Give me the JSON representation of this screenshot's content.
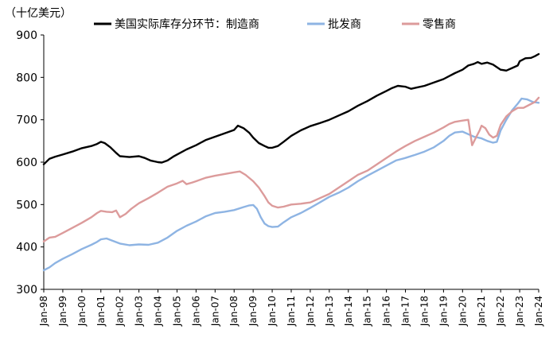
{
  "chart_data": {
    "type": "line",
    "unit_label": "（十亿美元）",
    "ylim": [
      300,
      900
    ],
    "yticks": [
      300,
      400,
      500,
      600,
      700,
      800,
      900
    ],
    "xlim": [
      1998,
      2024
    ],
    "xticks": [
      "Jan-98",
      "Jan-99",
      "Jan-00",
      "Jan-01",
      "Jan-02",
      "Jan-03",
      "Jan-04",
      "Jan-05",
      "Jan-06",
      "Jan-07",
      "Jan-08",
      "Jan-09",
      "Jan-10",
      "Jan-11",
      "Jan-12",
      "Jan-13",
      "Jan-14",
      "Jan-15",
      "Jan-16",
      "Jan-17",
      "Jan-18",
      "Jan-19",
      "Jan-20",
      "Jan-21",
      "Jan-22",
      "Jan-23",
      "Jan-24"
    ],
    "legend_placement": "top",
    "grid": false,
    "series": [
      {
        "name": "美国实际库存分环节：制造商",
        "color": "#000000",
        "points": [
          [
            1998.0,
            595
          ],
          [
            1998.3,
            608
          ],
          [
            1998.6,
            613
          ],
          [
            1999.0,
            618
          ],
          [
            1999.5,
            625
          ],
          [
            2000.0,
            633
          ],
          [
            2000.5,
            638
          ],
          [
            2000.8,
            643
          ],
          [
            2001.0,
            648
          ],
          [
            2001.2,
            645
          ],
          [
            2001.5,
            635
          ],
          [
            2001.8,
            622
          ],
          [
            2002.0,
            614
          ],
          [
            2002.5,
            612
          ],
          [
            2003.0,
            614
          ],
          [
            2003.3,
            610
          ],
          [
            2003.6,
            604
          ],
          [
            2004.0,
            600
          ],
          [
            2004.2,
            599
          ],
          [
            2004.5,
            604
          ],
          [
            2004.8,
            613
          ],
          [
            2005.0,
            618
          ],
          [
            2005.5,
            630
          ],
          [
            2006.0,
            640
          ],
          [
            2006.5,
            652
          ],
          [
            2007.0,
            660
          ],
          [
            2007.5,
            668
          ],
          [
            2008.0,
            676
          ],
          [
            2008.2,
            686
          ],
          [
            2008.5,
            680
          ],
          [
            2008.8,
            669
          ],
          [
            2009.0,
            658
          ],
          [
            2009.3,
            645
          ],
          [
            2009.6,
            638
          ],
          [
            2009.8,
            634
          ],
          [
            2010.0,
            634
          ],
          [
            2010.3,
            638
          ],
          [
            2010.6,
            648
          ],
          [
            2011.0,
            662
          ],
          [
            2011.5,
            675
          ],
          [
            2012.0,
            685
          ],
          [
            2012.5,
            692
          ],
          [
            2013.0,
            700
          ],
          [
            2013.5,
            710
          ],
          [
            2014.0,
            720
          ],
          [
            2014.5,
            733
          ],
          [
            2015.0,
            744
          ],
          [
            2015.5,
            757
          ],
          [
            2016.0,
            768
          ],
          [
            2016.3,
            775
          ],
          [
            2016.6,
            780
          ],
          [
            2017.0,
            778
          ],
          [
            2017.3,
            773
          ],
          [
            2017.6,
            776
          ],
          [
            2018.0,
            780
          ],
          [
            2018.5,
            788
          ],
          [
            2019.0,
            796
          ],
          [
            2019.3,
            803
          ],
          [
            2019.6,
            810
          ],
          [
            2020.0,
            818
          ],
          [
            2020.3,
            828
          ],
          [
            2020.6,
            832
          ],
          [
            2020.8,
            836
          ],
          [
            2021.0,
            832
          ],
          [
            2021.3,
            835
          ],
          [
            2021.6,
            830
          ],
          [
            2021.8,
            824
          ],
          [
            2022.0,
            818
          ],
          [
            2022.3,
            816
          ],
          [
            2022.6,
            822
          ],
          [
            2022.9,
            828
          ],
          [
            2023.0,
            838
          ],
          [
            2023.3,
            845
          ],
          [
            2023.6,
            846
          ],
          [
            2023.8,
            850
          ],
          [
            2024.0,
            855
          ]
        ]
      },
      {
        "name": "批发商",
        "color": "#8EB4E3",
        "points": [
          [
            1998.0,
            345
          ],
          [
            1998.3,
            352
          ],
          [
            1998.6,
            362
          ],
          [
            1999.0,
            372
          ],
          [
            1999.5,
            383
          ],
          [
            2000.0,
            395
          ],
          [
            2000.5,
            405
          ],
          [
            2000.8,
            412
          ],
          [
            2001.0,
            418
          ],
          [
            2001.3,
            420
          ],
          [
            2001.6,
            415
          ],
          [
            2002.0,
            408
          ],
          [
            2002.5,
            404
          ],
          [
            2003.0,
            406
          ],
          [
            2003.5,
            405
          ],
          [
            2004.0,
            410
          ],
          [
            2004.5,
            422
          ],
          [
            2005.0,
            438
          ],
          [
            2005.5,
            450
          ],
          [
            2006.0,
            460
          ],
          [
            2006.5,
            472
          ],
          [
            2007.0,
            480
          ],
          [
            2007.5,
            483
          ],
          [
            2008.0,
            487
          ],
          [
            2008.5,
            494
          ],
          [
            2008.8,
            498
          ],
          [
            2009.0,
            499
          ],
          [
            2009.2,
            490
          ],
          [
            2009.4,
            470
          ],
          [
            2009.6,
            455
          ],
          [
            2009.8,
            449
          ],
          [
            2010.0,
            447
          ],
          [
            2010.3,
            448
          ],
          [
            2010.6,
            458
          ],
          [
            2011.0,
            470
          ],
          [
            2011.5,
            480
          ],
          [
            2012.0,
            492
          ],
          [
            2012.5,
            505
          ],
          [
            2013.0,
            518
          ],
          [
            2013.5,
            528
          ],
          [
            2014.0,
            540
          ],
          [
            2014.5,
            555
          ],
          [
            2015.0,
            568
          ],
          [
            2015.5,
            580
          ],
          [
            2016.0,
            592
          ],
          [
            2016.5,
            604
          ],
          [
            2017.0,
            610
          ],
          [
            2017.5,
            617
          ],
          [
            2018.0,
            625
          ],
          [
            2018.5,
            635
          ],
          [
            2019.0,
            650
          ],
          [
            2019.3,
            662
          ],
          [
            2019.6,
            670
          ],
          [
            2020.0,
            672
          ],
          [
            2020.3,
            666
          ],
          [
            2020.6,
            660
          ],
          [
            2021.0,
            656
          ],
          [
            2021.3,
            650
          ],
          [
            2021.6,
            646
          ],
          [
            2021.8,
            648
          ],
          [
            2022.0,
            675
          ],
          [
            2022.3,
            700
          ],
          [
            2022.6,
            722
          ],
          [
            2022.9,
            738
          ],
          [
            2023.1,
            750
          ],
          [
            2023.4,
            748
          ],
          [
            2023.7,
            742
          ],
          [
            2024.0,
            740
          ]
        ]
      },
      {
        "name": "零售商",
        "color": "#DC9B9B",
        "points": [
          [
            1998.0,
            413
          ],
          [
            1998.3,
            422
          ],
          [
            1998.6,
            424
          ],
          [
            1999.0,
            433
          ],
          [
            1999.5,
            445
          ],
          [
            2000.0,
            457
          ],
          [
            2000.5,
            470
          ],
          [
            2000.8,
            480
          ],
          [
            2001.0,
            485
          ],
          [
            2001.3,
            483
          ],
          [
            2001.6,
            482
          ],
          [
            2001.8,
            486
          ],
          [
            2002.0,
            470
          ],
          [
            2002.3,
            478
          ],
          [
            2002.6,
            490
          ],
          [
            2003.0,
            503
          ],
          [
            2003.5,
            515
          ],
          [
            2004.0,
            528
          ],
          [
            2004.5,
            542
          ],
          [
            2005.0,
            550
          ],
          [
            2005.3,
            556
          ],
          [
            2005.5,
            548
          ],
          [
            2005.8,
            552
          ],
          [
            2006.0,
            555
          ],
          [
            2006.5,
            563
          ],
          [
            2007.0,
            568
          ],
          [
            2007.5,
            572
          ],
          [
            2008.0,
            576
          ],
          [
            2008.3,
            578
          ],
          [
            2008.6,
            570
          ],
          [
            2009.0,
            555
          ],
          [
            2009.3,
            540
          ],
          [
            2009.6,
            520
          ],
          [
            2009.8,
            505
          ],
          [
            2010.0,
            497
          ],
          [
            2010.3,
            493
          ],
          [
            2010.6,
            495
          ],
          [
            2011.0,
            500
          ],
          [
            2011.5,
            502
          ],
          [
            2012.0,
            505
          ],
          [
            2012.5,
            515
          ],
          [
            2013.0,
            525
          ],
          [
            2013.5,
            540
          ],
          [
            2014.0,
            555
          ],
          [
            2014.5,
            570
          ],
          [
            2015.0,
            580
          ],
          [
            2015.5,
            595
          ],
          [
            2016.0,
            610
          ],
          [
            2016.5,
            625
          ],
          [
            2017.0,
            638
          ],
          [
            2017.5,
            650
          ],
          [
            2018.0,
            660
          ],
          [
            2018.5,
            670
          ],
          [
            2019.0,
            682
          ],
          [
            2019.3,
            690
          ],
          [
            2019.6,
            695
          ],
          [
            2020.0,
            698
          ],
          [
            2020.3,
            700
          ],
          [
            2020.5,
            640
          ],
          [
            2020.7,
            658
          ],
          [
            2020.9,
            675
          ],
          [
            2021.0,
            686
          ],
          [
            2021.2,
            680
          ],
          [
            2021.4,
            665
          ],
          [
            2021.6,
            658
          ],
          [
            2021.8,
            662
          ],
          [
            2022.0,
            688
          ],
          [
            2022.3,
            708
          ],
          [
            2022.6,
            720
          ],
          [
            2022.9,
            728
          ],
          [
            2023.2,
            728
          ],
          [
            2023.5,
            735
          ],
          [
            2023.8,
            742
          ],
          [
            2024.0,
            752
          ]
        ]
      }
    ]
  }
}
